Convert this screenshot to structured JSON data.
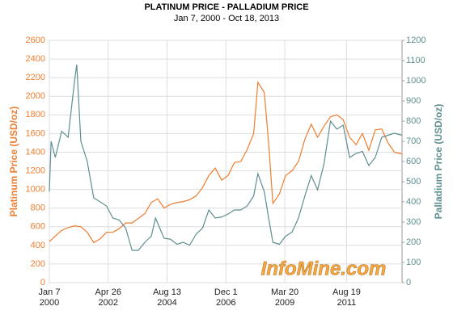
{
  "chart_data": {
    "type": "line",
    "title": "PLATINUM PRICE - PALLADIUM PRICE",
    "subtitle": "Jan 7, 2000 - Oct 18, 2013",
    "y_label": "Platinum Price (USD/oz)",
    "y2_label": "Palladium Price (USD/oz)",
    "annotation": "InfoMine.com",
    "grid": true,
    "xlim": [
      "2000-01-07",
      "2013-10-18"
    ],
    "xticks": [
      {
        "value": "2000-01-07",
        "label": "Jan 7\n2000"
      },
      {
        "value": "2002-04-26",
        "label": "Apr 26\n2002"
      },
      {
        "value": "2004-08-13",
        "label": "Aug 13\n2004"
      },
      {
        "value": "2006-12-01",
        "label": "Dec 1\n2006"
      },
      {
        "value": "2009-03-20",
        "label": "Mar 20\n2009"
      },
      {
        "value": "2011-08-19",
        "label": "Aug 19\n2011"
      }
    ],
    "ylim": [
      0,
      2600
    ],
    "yticks": [
      0,
      200,
      400,
      600,
      800,
      1000,
      1200,
      1400,
      1600,
      1800,
      2000,
      2200,
      2400,
      2600
    ],
    "y2lim": [
      0,
      1200
    ],
    "y2ticks": [
      0,
      100,
      200,
      300,
      400,
      500,
      600,
      700,
      800,
      900,
      1000,
      1100,
      1200
    ],
    "series": [
      {
        "name": "Platinum Price",
        "color": "#ee7d2f",
        "x": [
          "2000-01-07",
          "2000-04-01",
          "2000-07-01",
          "2000-10-01",
          "2001-01-01",
          "2001-04-01",
          "2001-07-01",
          "2001-10-01",
          "2002-01-01",
          "2002-04-01",
          "2002-07-01",
          "2002-10-01",
          "2003-01-01",
          "2003-04-01",
          "2003-07-01",
          "2003-10-01",
          "2004-01-01",
          "2004-04-01",
          "2004-07-01",
          "2004-10-01",
          "2005-01-01",
          "2005-04-01",
          "2005-07-01",
          "2005-10-01",
          "2006-01-01",
          "2006-04-01",
          "2006-07-01",
          "2006-10-01",
          "2007-01-01",
          "2007-04-01",
          "2007-07-01",
          "2007-10-01",
          "2008-01-01",
          "2008-03-01",
          "2008-06-01",
          "2008-08-01",
          "2008-10-01",
          "2009-01-01",
          "2009-04-01",
          "2009-07-01",
          "2009-10-01",
          "2010-01-01",
          "2010-04-01",
          "2010-07-01",
          "2010-10-01",
          "2011-01-01",
          "2011-04-01",
          "2011-07-01",
          "2011-10-01",
          "2012-01-01",
          "2012-04-01",
          "2012-07-01",
          "2012-10-01",
          "2013-01-01",
          "2013-04-01",
          "2013-07-01",
          "2013-10-18"
        ],
        "values": [
          440,
          500,
          560,
          590,
          610,
          600,
          540,
          430,
          470,
          540,
          540,
          580,
          640,
          640,
          690,
          740,
          860,
          900,
          800,
          840,
          860,
          870,
          890,
          930,
          1020,
          1150,
          1230,
          1100,
          1150,
          1290,
          1300,
          1430,
          1600,
          2150,
          2040,
          1500,
          850,
          950,
          1150,
          1200,
          1300,
          1540,
          1700,
          1560,
          1680,
          1780,
          1800,
          1750,
          1560,
          1480,
          1600,
          1420,
          1640,
          1650,
          1500,
          1400,
          1380
        ]
      },
      {
        "name": "Palladium Price",
        "color": "#5f8e8e",
        "axis": "y2",
        "x": [
          "2000-01-07",
          "2000-02-01",
          "2000-04-01",
          "2000-07-01",
          "2000-10-01",
          "2001-01-01",
          "2001-02-01",
          "2001-04-01",
          "2001-07-01",
          "2001-10-01",
          "2002-01-01",
          "2002-04-01",
          "2002-07-01",
          "2002-10-01",
          "2003-01-01",
          "2003-04-01",
          "2003-07-01",
          "2003-10-01",
          "2004-01-01",
          "2004-03-01",
          "2004-07-01",
          "2004-10-01",
          "2005-01-01",
          "2005-04-01",
          "2005-07-01",
          "2005-10-01",
          "2006-01-01",
          "2006-04-01",
          "2006-07-01",
          "2006-10-01",
          "2007-01-01",
          "2007-04-01",
          "2007-07-01",
          "2007-10-01",
          "2008-01-01",
          "2008-03-01",
          "2008-06-01",
          "2008-08-01",
          "2008-10-01",
          "2009-01-01",
          "2009-04-01",
          "2009-07-01",
          "2009-10-01",
          "2010-01-01",
          "2010-04-01",
          "2010-07-01",
          "2010-10-01",
          "2011-01-01",
          "2011-04-01",
          "2011-07-01",
          "2011-10-01",
          "2012-01-01",
          "2012-04-01",
          "2012-07-01",
          "2012-10-01",
          "2013-01-01",
          "2013-04-01",
          "2013-07-01",
          "2013-10-18"
        ],
        "values": [
          450,
          700,
          620,
          750,
          720,
          1000,
          1080,
          700,
          600,
          420,
          400,
          380,
          320,
          310,
          270,
          160,
          160,
          200,
          230,
          320,
          220,
          215,
          190,
          200,
          185,
          240,
          270,
          360,
          320,
          325,
          340,
          360,
          360,
          380,
          430,
          540,
          450,
          320,
          200,
          190,
          230,
          250,
          320,
          430,
          530,
          460,
          590,
          800,
          760,
          780,
          620,
          640,
          650,
          580,
          620,
          720,
          730,
          740,
          730
        ]
      }
    ]
  }
}
